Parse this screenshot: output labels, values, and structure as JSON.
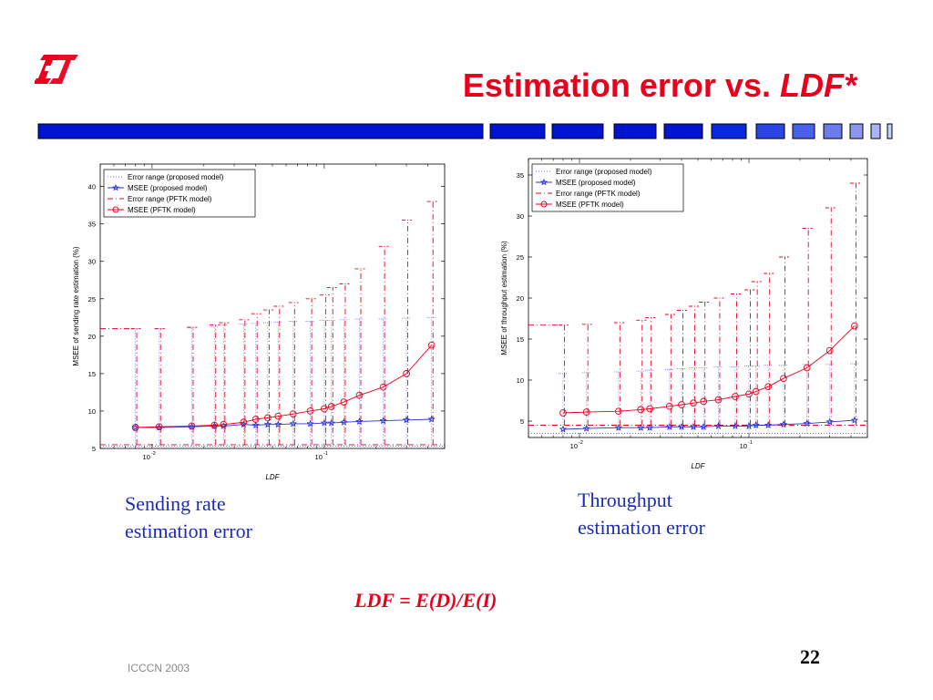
{
  "slide": {
    "title_main": "Estimation error vs.",
    "title_italic": "LDF*",
    "formula": "LDF = E(D)/E(I)",
    "footer": "ICCCN 2003",
    "page_number": "22",
    "colors": {
      "title": "#e8001c",
      "bar": "#0015cf",
      "caption": "#1c2bb3",
      "logo": "#e8001c"
    }
  },
  "captions": {
    "left": [
      "Sending rate",
      "estimation error"
    ],
    "right": [
      "Throughput",
      "estimation error"
    ]
  },
  "chart_data": [
    {
      "type": "line",
      "xscale": "log",
      "xlabel": "LDF",
      "ylabel": "MSEE of sending rate estimation (%)",
      "xlim": [
        0.005,
        0.5
      ],
      "ylim": [
        5,
        43
      ],
      "yticks": [
        5,
        10,
        15,
        20,
        25,
        30,
        35,
        40
      ],
      "xticks": [
        {
          "value": 0.01,
          "base": "10",
          "exp": "-2"
        },
        {
          "value": 0.1,
          "base": "10",
          "exp": "-1"
        }
      ],
      "grid": false,
      "legend_position": "top-left",
      "legend": [
        {
          "label": "Error range (proposed model)",
          "color": "#6b72e6",
          "style": "dotted",
          "marker": "none"
        },
        {
          "label": "MSEE (proposed model)",
          "color": "#2a33d6",
          "style": "solid",
          "marker": "star"
        },
        {
          "label": "Error range (PFTK model)",
          "color": "#e8001c",
          "style": "dashdot",
          "marker": "none"
        },
        {
          "label": "MSEE (PFTK model)",
          "color": "#e8001c",
          "style": "solid",
          "marker": "circle"
        }
      ],
      "series": [
        {
          "name": "MSEE (proposed model)",
          "x": [
            0.008,
            0.011,
            0.017,
            0.023,
            0.026,
            0.034,
            0.04,
            0.047,
            0.054,
            0.066,
            0.083,
            0.1,
            0.11,
            0.13,
            0.16,
            0.22,
            0.3,
            0.42
          ],
          "y": [
            7.8,
            7.8,
            7.9,
            8.0,
            8.0,
            8.2,
            8.1,
            8.2,
            8.2,
            8.3,
            8.3,
            8.4,
            8.4,
            8.5,
            8.6,
            8.7,
            8.8,
            8.9
          ]
        },
        {
          "name": "MSEE (PFTK model)",
          "x": [
            0.008,
            0.011,
            0.017,
            0.023,
            0.026,
            0.034,
            0.04,
            0.047,
            0.054,
            0.066,
            0.083,
            0.1,
            0.11,
            0.13,
            0.16,
            0.22,
            0.3,
            0.42
          ],
          "y": [
            7.8,
            7.9,
            8.0,
            8.1,
            8.2,
            8.5,
            8.9,
            9.1,
            9.3,
            9.6,
            10.0,
            10.3,
            10.6,
            11.2,
            12.1,
            13.2,
            15.0,
            18.8
          ]
        }
      ],
      "pftk_range": {
        "lower": 5.5,
        "upper": [
          21,
          21,
          21.2,
          21.5,
          21.8,
          22.2,
          23.0,
          23.5,
          24.0,
          24.5,
          25.0,
          25.5,
          26.5,
          27.0,
          29.0,
          32.0,
          35.5,
          38.0
        ]
      },
      "proposed_range": {
        "lower": 5.3,
        "upper": [
          21.0,
          21.0,
          21.1,
          21.3,
          21.5,
          21.6,
          21.7,
          21.8,
          21.9,
          22.0,
          22.0,
          22.1,
          22.1,
          22.2,
          22.3,
          22.3,
          22.4,
          22.5
        ]
      }
    },
    {
      "type": "line",
      "xscale": "log",
      "xlabel": "LDF",
      "ylabel": "MSEE of throughput estimation (%)",
      "xlim": [
        0.005,
        0.5
      ],
      "ylim": [
        3,
        37
      ],
      "yticks": [
        5,
        10,
        15,
        20,
        25,
        30,
        35
      ],
      "xticks": [
        {
          "value": 0.01,
          "base": "10",
          "exp": "-2"
        },
        {
          "value": 0.1,
          "base": "10",
          "exp": "-1"
        }
      ],
      "grid": false,
      "legend_position": "top-left",
      "legend": [
        {
          "label": "Error range (proposed model)",
          "color": "#6b72e6",
          "style": "dotted",
          "marker": "none"
        },
        {
          "label": "MSEE (proposed model)",
          "color": "#2a33d6",
          "style": "solid",
          "marker": "star"
        },
        {
          "label": "Error range (PFTK model)",
          "color": "#e8001c",
          "style": "dashdot",
          "marker": "none"
        },
        {
          "label": "MSEE (PFTK model)",
          "color": "#e8001c",
          "style": "solid",
          "marker": "circle"
        }
      ],
      "series": [
        {
          "name": "MSEE (proposed model)",
          "x": [
            0.008,
            0.011,
            0.017,
            0.023,
            0.026,
            0.034,
            0.04,
            0.047,
            0.054,
            0.066,
            0.083,
            0.1,
            0.11,
            0.13,
            0.16,
            0.22,
            0.3,
            0.42
          ],
          "y": [
            4.0,
            4.1,
            4.2,
            4.2,
            4.2,
            4.3,
            4.3,
            4.3,
            4.3,
            4.4,
            4.4,
            4.4,
            4.5,
            4.5,
            4.6,
            4.7,
            4.9,
            5.1
          ]
        },
        {
          "name": "MSEE (PFTK model)",
          "x": [
            0.008,
            0.011,
            0.017,
            0.023,
            0.026,
            0.034,
            0.04,
            0.047,
            0.054,
            0.066,
            0.083,
            0.1,
            0.11,
            0.13,
            0.16,
            0.22,
            0.3,
            0.42
          ],
          "y": [
            6.0,
            6.1,
            6.2,
            6.4,
            6.5,
            6.8,
            7.0,
            7.2,
            7.4,
            7.6,
            8.0,
            8.3,
            8.6,
            9.2,
            10.2,
            11.5,
            13.6,
            16.6
          ]
        }
      ],
      "pftk_range": {
        "lower": 4.5,
        "upper": [
          16.7,
          16.8,
          17.0,
          17.3,
          17.6,
          18.0,
          18.5,
          19.0,
          19.5,
          20.0,
          20.5,
          21.0,
          22.0,
          23.0,
          25.0,
          28.5,
          31.0,
          34.0
        ]
      },
      "proposed_range": {
        "lower": 3.5,
        "upper": [
          10.8,
          10.9,
          11.0,
          11.1,
          11.2,
          11.3,
          11.4,
          11.5,
          11.5,
          11.6,
          11.6,
          11.7,
          11.7,
          11.8,
          11.8,
          11.9,
          11.9,
          12.0
        ]
      }
    }
  ]
}
